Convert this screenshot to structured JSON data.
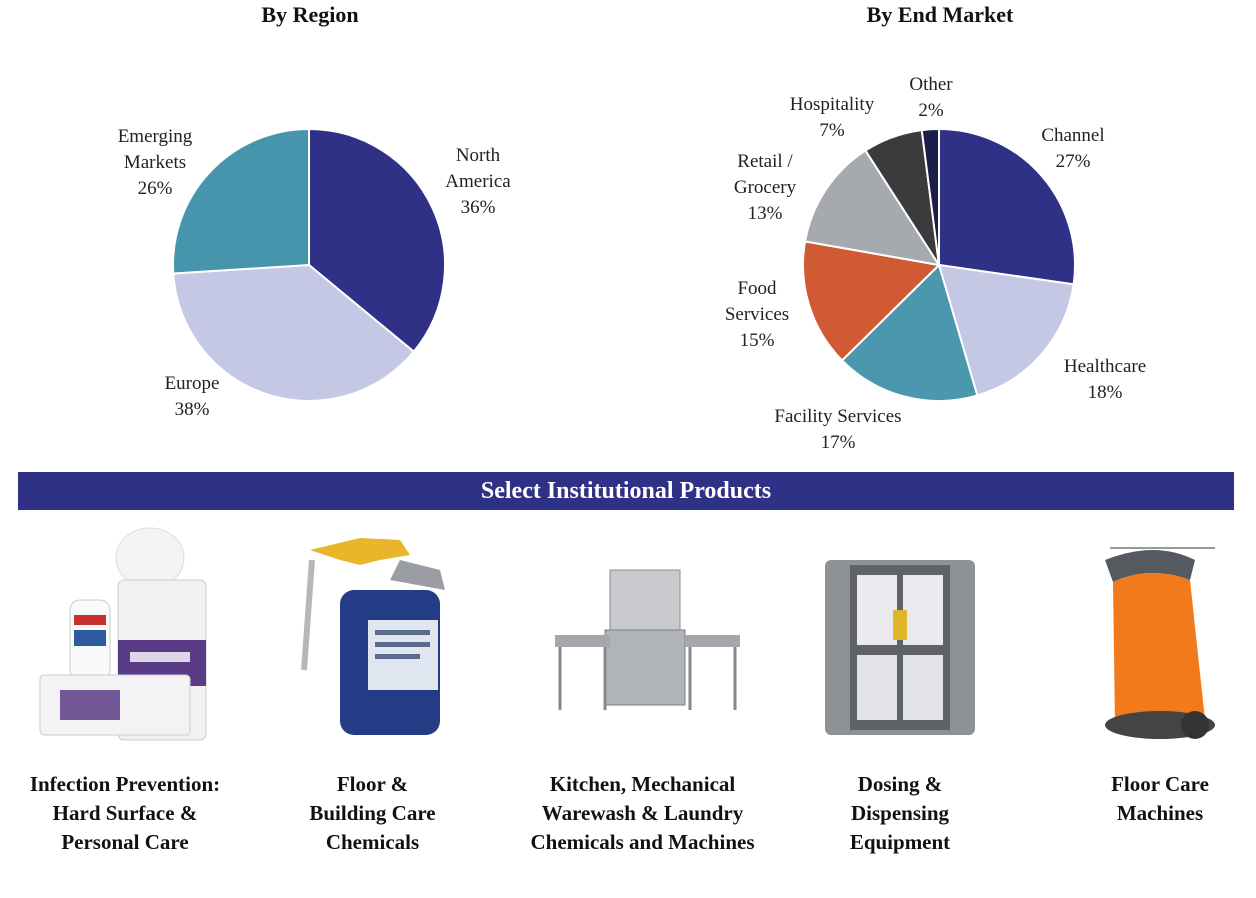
{
  "chart_data": [
    {
      "type": "pie",
      "title": "By Region",
      "slices": [
        {
          "label": [
            "North",
            "America"
          ],
          "pct": "36%",
          "value": 36,
          "color": "#2e3185"
        },
        {
          "label": [
            "Europe"
          ],
          "pct": "38%",
          "value": 38,
          "color": "#c5c8e4"
        },
        {
          "label": [
            "Emerging",
            "Markets"
          ],
          "pct": "26%",
          "value": 26,
          "color": "#4794ad"
        }
      ]
    },
    {
      "type": "pie",
      "title": "By End Market",
      "slices": [
        {
          "label": [
            "Channel"
          ],
          "pct": "27%",
          "value": 27,
          "color": "#2e3185"
        },
        {
          "label": [
            "Healthcare"
          ],
          "pct": "18%",
          "value": 18,
          "color": "#c5c8e4"
        },
        {
          "label": [
            "Facility Services"
          ],
          "pct": "17%",
          "value": 17,
          "color": "#4b97ad"
        },
        {
          "label": [
            "Food",
            "Services"
          ],
          "pct": "15%",
          "value": 15,
          "color": "#cf5a34"
        },
        {
          "label": [
            "Retail /",
            "Grocery"
          ],
          "pct": "13%",
          "value": 13,
          "color": "#a6a9ad"
        },
        {
          "label": [
            "Hospitality"
          ],
          "pct": "7%",
          "value": 7,
          "color": "#3b3b3d"
        },
        {
          "label": [
            "Other"
          ],
          "pct": "2%",
          "value": 2,
          "color": "#1b1d4a"
        }
      ]
    }
  ],
  "banner": {
    "title": "Select Institutional Products"
  },
  "products": [
    {
      "lines": [
        "Infection Prevention:",
        "Hard Surface &",
        "Personal Care"
      ]
    },
    {
      "lines": [
        "Floor &",
        "Building Care",
        "Chemicals"
      ]
    },
    {
      "lines": [
        "Kitchen, Mechanical",
        "Warewash & Laundry",
        "Chemicals and Machines"
      ]
    },
    {
      "lines": [
        "Dosing &",
        "Dispensing",
        "Equipment"
      ]
    },
    {
      "lines": [
        "Floor Care",
        "Machines"
      ]
    }
  ],
  "product_icons": [
    "disinfectant-wipes-icon",
    "spray-bottle-icon",
    "dishwasher-machine-icon",
    "dispenser-cabinet-icon",
    "floor-scrubber-icon"
  ]
}
